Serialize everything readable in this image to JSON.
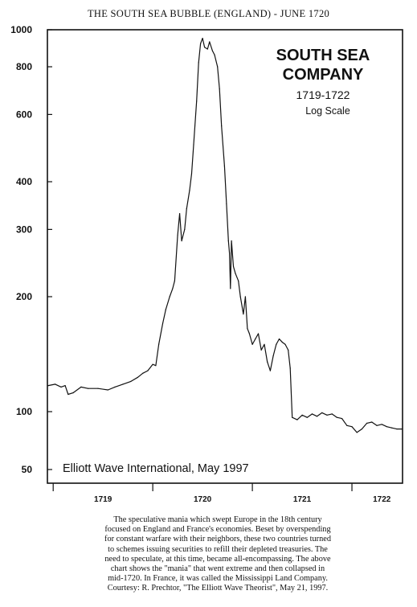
{
  "header": {
    "title": "THE SOUTH SEA BUBBLE (ENGLAND) - JUNE 1720"
  },
  "colors": {
    "background": "#ffffff",
    "ink": "#111111"
  },
  "chart_data": {
    "type": "line",
    "title": "SOUTH SEA COMPANY",
    "title_lines": [
      "SOUTH SEA",
      "COMPANY"
    ],
    "subtitle": "1719-1722",
    "scale_note": "Log Scale",
    "annotation": "Elliott Wave International, May 1997",
    "xlabel": "",
    "ylabel": "",
    "y_scale": "log",
    "ylim": [
      50,
      1000
    ],
    "xlim": [
      1718.95,
      1722.5
    ],
    "y_ticks": [
      50,
      100,
      200,
      300,
      400,
      600,
      800,
      1000
    ],
    "y_tick_labels": [
      "50",
      "100",
      "200",
      "300",
      "400",
      "600",
      "800",
      "1000"
    ],
    "x_tick_labels": [
      {
        "label": "1719",
        "x": 1719.5
      },
      {
        "label": "1720",
        "x": 1720.5
      },
      {
        "label": "1721",
        "x": 1721.5
      },
      {
        "label": "1722",
        "x": 1722.3
      }
    ],
    "x_ticks_minor": [
      1719,
      1720,
      1721,
      1722
    ],
    "grid": false,
    "series": [
      {
        "points": [
          [
            1718.95,
            117
          ],
          [
            1719.02,
            118
          ],
          [
            1719.08,
            116
          ],
          [
            1719.12,
            117
          ],
          [
            1719.15,
            111
          ],
          [
            1719.2,
            112
          ],
          [
            1719.28,
            116
          ],
          [
            1719.35,
            115
          ],
          [
            1719.45,
            115
          ],
          [
            1719.55,
            114
          ],
          [
            1719.62,
            116
          ],
          [
            1719.7,
            118
          ],
          [
            1719.78,
            120
          ],
          [
            1719.85,
            123
          ],
          [
            1719.9,
            126
          ],
          [
            1719.95,
            128
          ],
          [
            1720.0,
            133
          ],
          [
            1720.03,
            132
          ],
          [
            1720.06,
            150
          ],
          [
            1720.1,
            170
          ],
          [
            1720.13,
            185
          ],
          [
            1720.17,
            200
          ],
          [
            1720.2,
            210
          ],
          [
            1720.22,
            220
          ],
          [
            1720.25,
            290
          ],
          [
            1720.27,
            330
          ],
          [
            1720.29,
            280
          ],
          [
            1720.32,
            300
          ],
          [
            1720.34,
            340
          ],
          [
            1720.37,
            380
          ],
          [
            1720.39,
            420
          ],
          [
            1720.41,
            500
          ],
          [
            1720.44,
            650
          ],
          [
            1720.46,
            820
          ],
          [
            1720.48,
            920
          ],
          [
            1720.5,
            950
          ],
          [
            1720.52,
            900
          ],
          [
            1720.55,
            890
          ],
          [
            1720.57,
            930
          ],
          [
            1720.6,
            880
          ],
          [
            1720.62,
            860
          ],
          [
            1720.65,
            800
          ],
          [
            1720.67,
            700
          ],
          [
            1720.69,
            560
          ],
          [
            1720.72,
            440
          ],
          [
            1720.74,
            350
          ],
          [
            1720.76,
            280
          ],
          [
            1720.77,
            260
          ],
          [
            1720.78,
            210
          ],
          [
            1720.79,
            280
          ],
          [
            1720.81,
            240
          ],
          [
            1720.83,
            230
          ],
          [
            1720.86,
            220
          ],
          [
            1720.88,
            200
          ],
          [
            1720.91,
            180
          ],
          [
            1720.93,
            200
          ],
          [
            1720.95,
            165
          ],
          [
            1720.97,
            160
          ],
          [
            1721.0,
            150
          ],
          [
            1721.03,
            155
          ],
          [
            1721.06,
            160
          ],
          [
            1721.09,
            145
          ],
          [
            1721.12,
            150
          ],
          [
            1721.15,
            135
          ],
          [
            1721.18,
            128
          ],
          [
            1721.21,
            140
          ],
          [
            1721.24,
            150
          ],
          [
            1721.27,
            155
          ],
          [
            1721.3,
            152
          ],
          [
            1721.33,
            150
          ],
          [
            1721.36,
            145
          ],
          [
            1721.38,
            130
          ],
          [
            1721.4,
            95
          ],
          [
            1721.45,
            93
          ],
          [
            1721.5,
            97
          ],
          [
            1721.55,
            95
          ],
          [
            1721.6,
            98
          ],
          [
            1721.65,
            96
          ],
          [
            1721.7,
            99
          ],
          [
            1721.75,
            97
          ],
          [
            1721.8,
            98
          ],
          [
            1721.85,
            95
          ],
          [
            1721.9,
            94
          ],
          [
            1721.95,
            88
          ],
          [
            1722.0,
            87
          ],
          [
            1722.05,
            82
          ],
          [
            1722.1,
            85
          ],
          [
            1722.15,
            90
          ],
          [
            1722.2,
            91
          ],
          [
            1722.25,
            88
          ],
          [
            1722.3,
            89
          ],
          [
            1722.35,
            87
          ],
          [
            1722.4,
            86
          ],
          [
            1722.45,
            85
          ],
          [
            1722.5,
            85
          ]
        ]
      }
    ]
  },
  "caption": {
    "lines": [
      "The speculative mania which swept Europe in the 18th century",
      "focused on England and France's economies. Beset by overspending",
      "for constant warfare with their neighbors, these two countries turned",
      "to schemes issuing securities to refill their depleted treasuries. The",
      "need to speculate, at this time, became all-encompassing. The above",
      "chart shows the \"mania\" that went extreme and then collapsed in",
      "mid-1720. In France, it was called the Mississippi Land Company.",
      "Courtesy: R. Prechtor, \"The Elliott Wave Theorist\", May 21, 1997."
    ]
  }
}
